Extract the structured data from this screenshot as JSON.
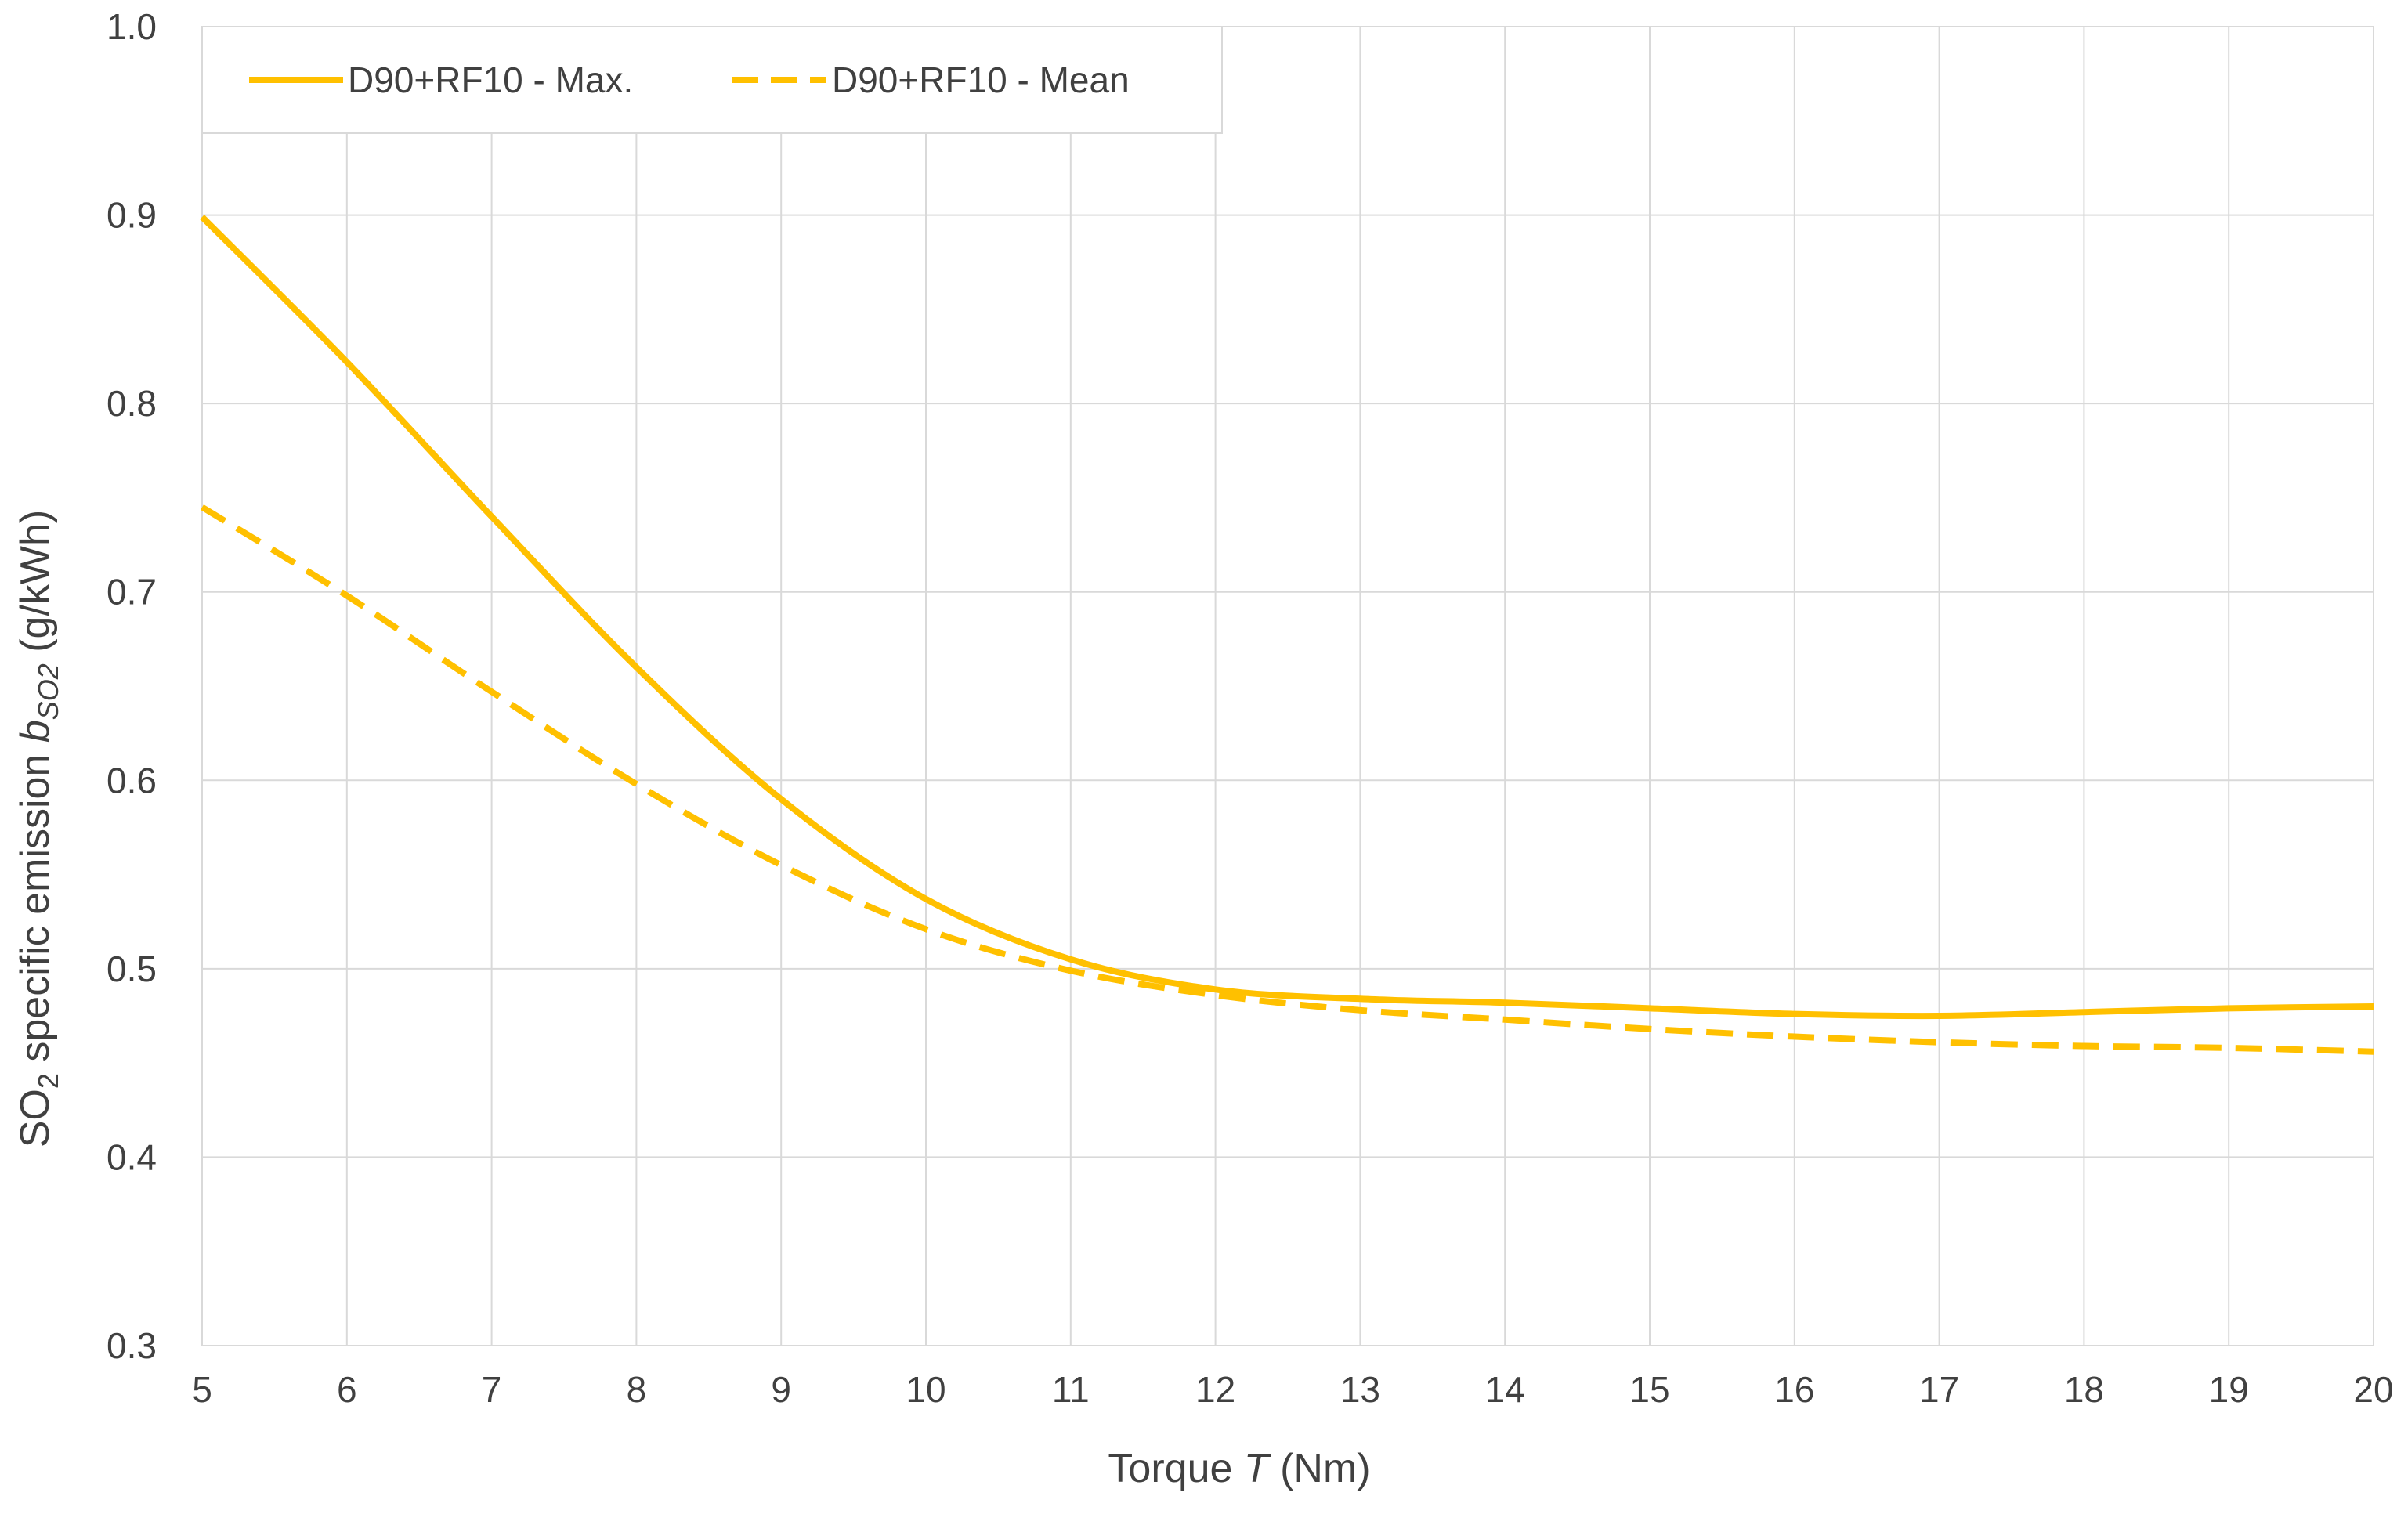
{
  "chart_data": {
    "type": "line",
    "title": "",
    "xlabel": {
      "prefix": "Torque ",
      "italic": "T",
      "suffix": " (Nm)"
    },
    "ylabel": {
      "p1": "SO",
      "p1_sub": "2",
      "p2": " specific emission ",
      "p2_italic": "b",
      "p2_sub": "SO2",
      "p3": " (g/kWh)"
    },
    "xlim": [
      5,
      20
    ],
    "ylim": [
      0.3,
      1.0
    ],
    "x_ticks": [
      5,
      6,
      7,
      8,
      9,
      10,
      11,
      12,
      13,
      14,
      15,
      16,
      17,
      18,
      19,
      20
    ],
    "x_tick_labels": [
      "5",
      "6",
      "7",
      "8",
      "9",
      "10",
      "11",
      "12",
      "13",
      "14",
      "15",
      "16",
      "17",
      "18",
      "19",
      "20"
    ],
    "y_ticks": [
      0.3,
      0.4,
      0.5,
      0.6,
      0.7,
      0.8,
      0.9,
      1.0
    ],
    "y_tick_labels": [
      "0.3",
      "0.4",
      "0.5",
      "0.6",
      "0.7",
      "0.8",
      "0.9",
      "1.0"
    ],
    "grid": true,
    "legend_position": "top-left",
    "series": [
      {
        "name": "D90+RF10 - Max.",
        "style": "solid",
        "color": "#FFC000",
        "x": [
          5,
          6,
          7,
          8,
          9,
          10,
          11,
          12,
          13,
          14,
          15,
          16,
          17,
          18,
          19,
          20
        ],
        "y": [
          0.899,
          0.822,
          0.74,
          0.66,
          0.59,
          0.537,
          0.505,
          0.489,
          0.484,
          0.482,
          0.479,
          0.476,
          0.475,
          0.477,
          0.479,
          0.48
        ]
      },
      {
        "name": "D90+RF10 - Mean",
        "style": "dashed",
        "color": "#FFC000",
        "x": [
          5,
          6,
          7,
          8,
          9,
          10,
          11,
          12,
          13,
          14,
          15,
          16,
          17,
          18,
          19,
          20
        ],
        "y": [
          0.745,
          0.698,
          0.647,
          0.598,
          0.555,
          0.521,
          0.499,
          0.486,
          0.478,
          0.473,
          0.468,
          0.464,
          0.461,
          0.459,
          0.458,
          0.456
        ]
      }
    ]
  }
}
